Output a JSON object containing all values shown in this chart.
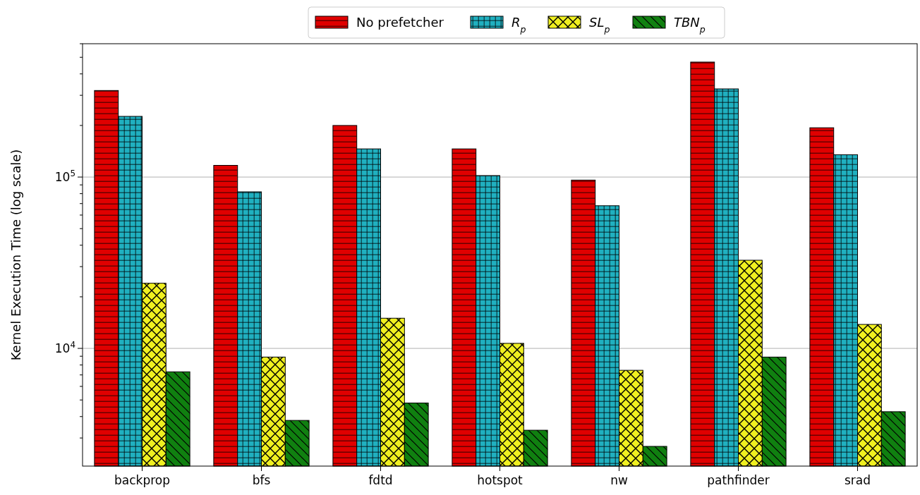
{
  "chart_data": {
    "type": "bar",
    "ylabel": "Kernel Execution Time (log scale)",
    "categories": [
      "backprop",
      "bfs",
      "fdtd",
      "hotspot",
      "nw",
      "pathfinder",
      "srad"
    ],
    "series": [
      {
        "name": "No prefetcher",
        "color": "#e00000",
        "values": [
          320000,
          117000,
          200000,
          146000,
          96000,
          469000,
          194000
        ]
      },
      {
        "name": "R$_{p}$",
        "color": "#20b0c0",
        "values": [
          226000,
          82000,
          146000,
          102000,
          68000,
          327000,
          135000
        ]
      },
      {
        "name": "SL$_{p}$",
        "color": "#f0f020",
        "values": [
          24000,
          8900,
          15000,
          10700,
          7450,
          32700,
          13800
        ]
      },
      {
        "name": "TBN$_{p}$",
        "color": "#108010",
        "values": [
          7300,
          3800,
          4800,
          3330,
          2680,
          8900,
          4270
        ]
      }
    ],
    "log": "y",
    "ylim": [
      2056,
      600000
    ],
    "yticks": [
      {
        "value": 10000,
        "label": "10$^{4}$"
      },
      {
        "value": 100000,
        "label": "10$^{5}$"
      }
    ],
    "grid": "y",
    "legend": "top"
  }
}
